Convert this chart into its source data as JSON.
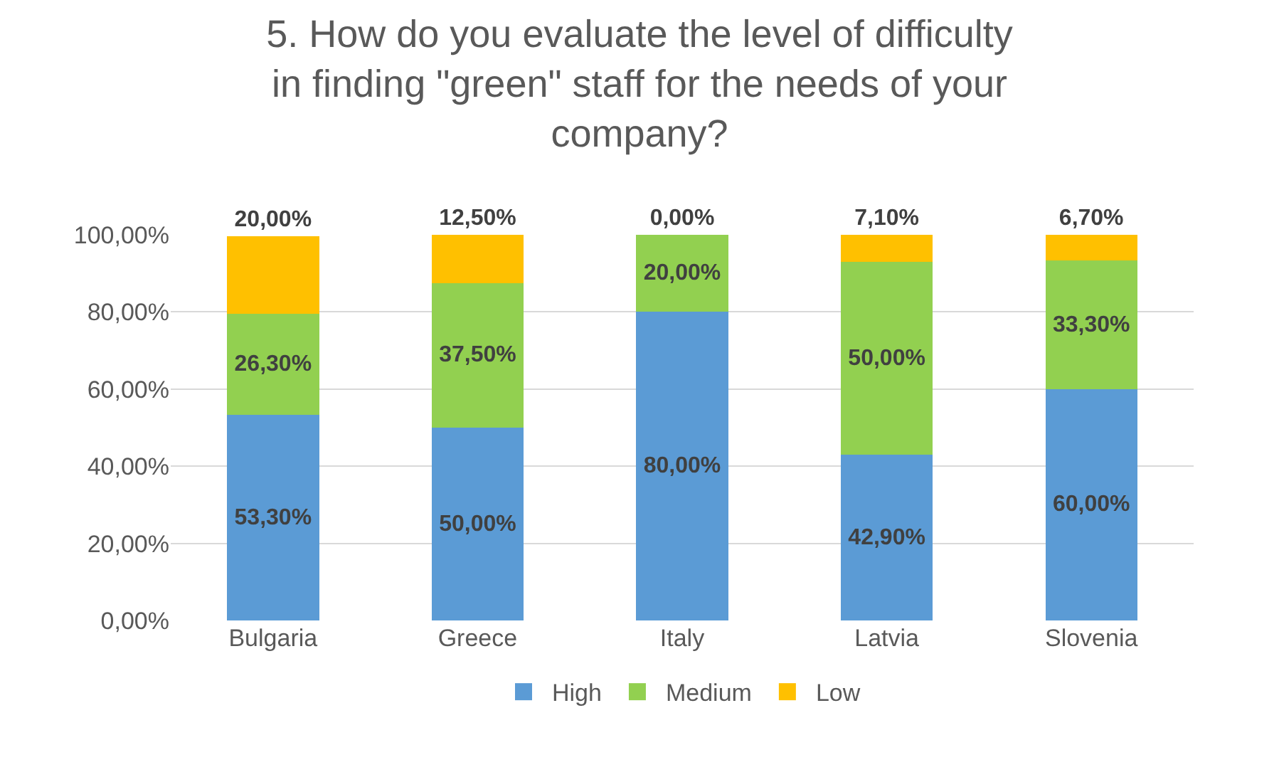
{
  "chart_data": {
    "type": "bar",
    "stacked": true,
    "title": "5. How do you evaluate the level of difficulty in finding \"green\" staff for the needs of your company?",
    "categories": [
      "Bulgaria",
      "Greece",
      "Italy",
      "Latvia",
      "Slovenia"
    ],
    "series": [
      {
        "name": "High",
        "color": "#5b9bd5",
        "values": [
          53.3,
          50,
          80,
          42.9,
          60
        ],
        "value_labels": [
          "53,30%",
          "50,00%",
          "80,00%",
          "42,90%",
          "60,00%"
        ]
      },
      {
        "name": "Medium",
        "color": "#92d050",
        "values": [
          26.3,
          37.5,
          20,
          50,
          33.3
        ],
        "value_labels": [
          "26,30%",
          "37,50%",
          "20,00%",
          "50,00%",
          "33,30%"
        ]
      },
      {
        "name": "Low",
        "color": "#ffc000",
        "values": [
          20,
          12.5,
          0,
          7.1,
          6.7
        ],
        "value_labels": [
          "20,00%",
          "12,50%",
          "0,00%",
          "7,10%",
          "6,70%"
        ]
      }
    ],
    "ylim": [
      0,
      100
    ],
    "yticks": [
      {
        "value": 0,
        "label": "0,00%"
      },
      {
        "value": 20,
        "label": "20,00%"
      },
      {
        "value": 40,
        "label": "40,00%"
      },
      {
        "value": 60,
        "label": "60,00%"
      },
      {
        "value": 80,
        "label": "80,00%"
      },
      {
        "value": 100,
        "label": "100,00%"
      }
    ],
    "grid": "y",
    "legend": "bottom"
  }
}
